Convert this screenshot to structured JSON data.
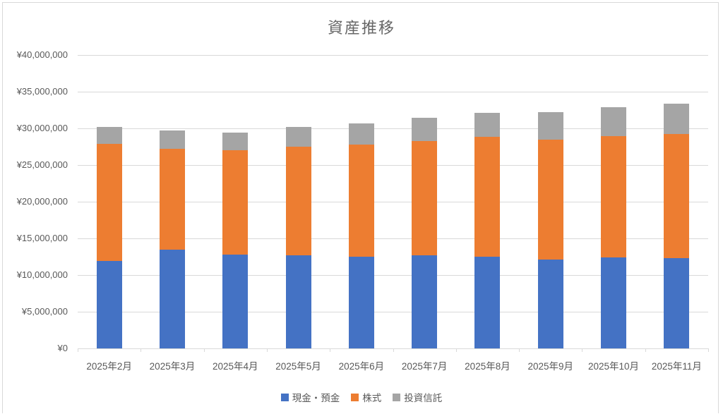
{
  "chart_data": {
    "type": "bar",
    "stacked": true,
    "title": "資産推移",
    "categories": [
      "2025年2月",
      "2025年3月",
      "2025年4月",
      "2025年5月",
      "2025年6月",
      "2025年7月",
      "2025年8月",
      "2025年9月",
      "2025年10月",
      "2025年11月"
    ],
    "series": [
      {
        "id": "cash",
        "name": "現金・預金",
        "color": "#4472C4",
        "values": [
          11900000,
          13500000,
          12800000,
          12700000,
          12500000,
          12700000,
          12500000,
          12100000,
          12400000,
          12300000
        ]
      },
      {
        "id": "stocks",
        "name": "株式",
        "color": "#ED7D31",
        "values": [
          16000000,
          13700000,
          14200000,
          14800000,
          15300000,
          15600000,
          16300000,
          16400000,
          16500000,
          16900000
        ]
      },
      {
        "id": "funds",
        "name": "投資信託",
        "color": "#A5A5A5",
        "values": [
          2300000,
          2500000,
          2400000,
          2700000,
          2900000,
          3100000,
          3300000,
          3700000,
          4000000,
          4200000
        ]
      }
    ],
    "totals": [
      30200000,
      29700000,
      29400000,
      30200000,
      30700000,
      31400000,
      32100000,
      32200000,
      32900000,
      33400000
    ],
    "ylim": [
      0,
      40000000
    ],
    "ytick_interval": 5000000,
    "ytick_labels": [
      "¥0",
      "¥5,000,000",
      "¥10,000,000",
      "¥15,000,000",
      "¥20,000,000",
      "¥25,000,000",
      "¥30,000,000",
      "¥35,000,000",
      "¥40,000,000"
    ],
    "grid": "horizontal",
    "legend_position": "bottom",
    "colors": {
      "gridline": "#d9d9d9",
      "axis_text": "#595959",
      "title_text": "#666666",
      "chart_border": "#d9d9d9"
    }
  }
}
